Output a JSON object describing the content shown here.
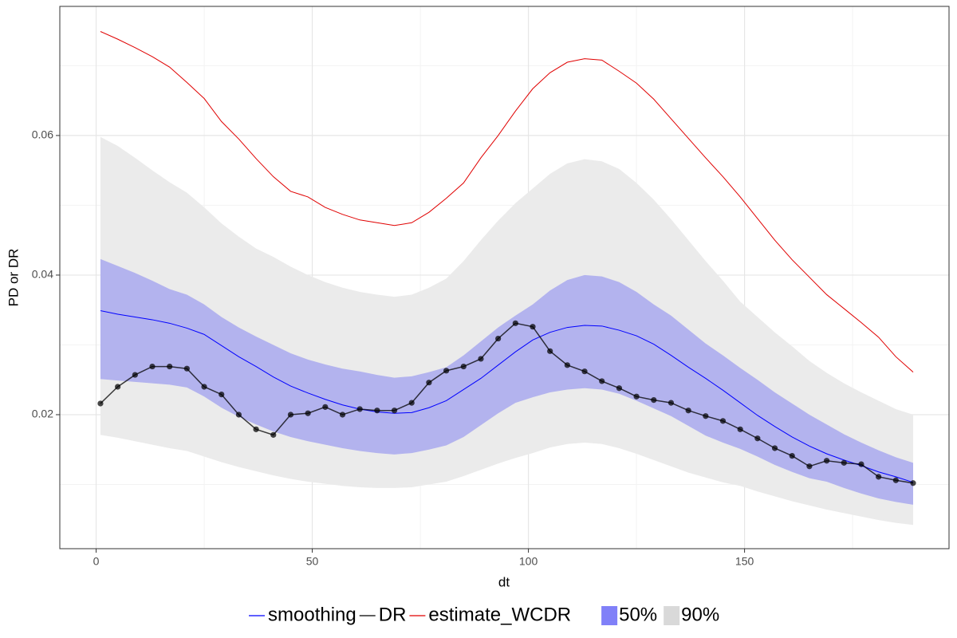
{
  "chart_data": {
    "type": "line",
    "x_label": "dt",
    "y_label": "PD or DR",
    "xlim": [
      -8.4,
      197.3
    ],
    "ylim": [
      0.0008,
      0.0785
    ],
    "xticks": [
      0,
      50,
      100,
      150
    ],
    "yticks": [
      0.02,
      0.04,
      0.06
    ],
    "x_minor_grid": [
      25,
      75,
      125,
      175
    ],
    "y_minor_grid": [
      0.01,
      0.03,
      0.05,
      0.07
    ],
    "grid": true,
    "x": [
      1,
      5,
      9,
      13,
      17,
      21,
      25,
      29,
      33,
      37,
      41,
      45,
      49,
      53,
      57,
      61,
      65,
      69,
      73,
      77,
      81,
      85,
      89,
      93,
      97,
      101,
      105,
      109,
      113,
      117,
      121,
      125,
      129,
      133,
      137,
      141,
      145,
      149,
      153,
      157,
      161,
      165,
      169,
      173,
      177,
      181,
      185,
      189
    ],
    "series": [
      {
        "name": "smoothing",
        "color": "#0000ff",
        "style": "line",
        "values": [
          0.0349,
          0.0344,
          0.034,
          0.0336,
          0.0331,
          0.0324,
          0.0315,
          0.0299,
          0.0283,
          0.0269,
          0.0254,
          0.0241,
          0.0231,
          0.0222,
          0.0214,
          0.0208,
          0.0204,
          0.0202,
          0.0203,
          0.021,
          0.022,
          0.0236,
          0.0252,
          0.0271,
          0.029,
          0.0307,
          0.0318,
          0.0325,
          0.0328,
          0.0327,
          0.0321,
          0.0313,
          0.0301,
          0.0285,
          0.0268,
          0.0252,
          0.0235,
          0.0217,
          0.0199,
          0.0183,
          0.0168,
          0.0155,
          0.0144,
          0.0135,
          0.0127,
          0.0118,
          0.0111,
          0.0103
        ]
      },
      {
        "name": "DR",
        "color": "#000000",
        "style": "points",
        "values": [
          0.0216,
          0.024,
          0.0257,
          0.0269,
          0.0269,
          0.0266,
          0.024,
          0.0229,
          0.02,
          0.0179,
          0.0171,
          0.02,
          0.0202,
          0.0211,
          0.02,
          0.0208,
          0.0206,
          0.0206,
          0.0217,
          0.0246,
          0.0263,
          0.0269,
          0.028,
          0.0309,
          0.0331,
          0.0326,
          0.0291,
          0.0271,
          0.0262,
          0.0248,
          0.0238,
          0.0226,
          0.0221,
          0.0217,
          0.0206,
          0.0198,
          0.0191,
          0.0179,
          0.0166,
          0.0152,
          0.0141,
          0.0126,
          0.0134,
          0.0131,
          0.0129,
          0.0111,
          0.0106,
          0.0102
        ]
      },
      {
        "name": "estimate_WCDR",
        "color": "#e00000",
        "style": "line",
        "values": [
          0.0749,
          0.0738,
          0.0726,
          0.0713,
          0.0698,
          0.0676,
          0.0653,
          0.062,
          0.0595,
          0.0567,
          0.0541,
          0.052,
          0.0512,
          0.0497,
          0.0487,
          0.0479,
          0.0475,
          0.0471,
          0.0475,
          0.049,
          0.051,
          0.0532,
          0.0568,
          0.06,
          0.0635,
          0.0667,
          0.069,
          0.0705,
          0.071,
          0.0708,
          0.0692,
          0.0675,
          0.0652,
          0.0624,
          0.0596,
          0.0568,
          0.0541,
          0.0512,
          0.0481,
          0.045,
          0.0422,
          0.0397,
          0.0372,
          0.0352,
          0.0332,
          0.0311,
          0.0283,
          0.0261
        ]
      }
    ],
    "bands": [
      {
        "name": "50%",
        "color": "#8080f8",
        "fill": "#b3b3ee",
        "upper": [
          0.0423,
          0.0413,
          0.0403,
          0.0392,
          0.038,
          0.0372,
          0.0358,
          0.034,
          0.0325,
          0.0312,
          0.03,
          0.0288,
          0.0279,
          0.0272,
          0.0266,
          0.0262,
          0.0257,
          0.0253,
          0.0255,
          0.0261,
          0.0268,
          0.0285,
          0.0305,
          0.0325,
          0.0342,
          0.0358,
          0.0378,
          0.0393,
          0.04,
          0.0398,
          0.039,
          0.0376,
          0.0358,
          0.0342,
          0.0322,
          0.0302,
          0.0285,
          0.0267,
          0.025,
          0.0232,
          0.0216,
          0.02,
          0.0186,
          0.0172,
          0.016,
          0.0149,
          0.0139,
          0.0131
        ],
        "lower": [
          0.0251,
          0.0249,
          0.0247,
          0.0245,
          0.0243,
          0.0239,
          0.0226,
          0.021,
          0.0197,
          0.0186,
          0.0176,
          0.0168,
          0.0162,
          0.0157,
          0.0152,
          0.0148,
          0.0145,
          0.0143,
          0.0145,
          0.015,
          0.0156,
          0.0168,
          0.0185,
          0.0202,
          0.0217,
          0.0225,
          0.0232,
          0.0236,
          0.0238,
          0.0236,
          0.023,
          0.022,
          0.0209,
          0.0198,
          0.0184,
          0.017,
          0.016,
          0.0151,
          0.014,
          0.0128,
          0.0118,
          0.0109,
          0.0104,
          0.0095,
          0.0087,
          0.008,
          0.0075,
          0.0071
        ]
      },
      {
        "name": "90%",
        "color": "#d9d9d9",
        "fill": "#ebebeb",
        "upper": [
          0.0598,
          0.0585,
          0.0568,
          0.055,
          0.0533,
          0.0518,
          0.0497,
          0.0474,
          0.0455,
          0.0438,
          0.0426,
          0.0412,
          0.04,
          0.039,
          0.0382,
          0.0376,
          0.0372,
          0.0369,
          0.0372,
          0.0382,
          0.0395,
          0.042,
          0.045,
          0.0478,
          0.0503,
          0.0524,
          0.0545,
          0.056,
          0.0566,
          0.0563,
          0.0552,
          0.0532,
          0.0508,
          0.048,
          0.045,
          0.042,
          0.0392,
          0.0362,
          0.034,
          0.0318,
          0.0298,
          0.0277,
          0.026,
          0.0245,
          0.0232,
          0.022,
          0.0208,
          0.02
        ],
        "lower": [
          0.0171,
          0.0167,
          0.0162,
          0.0157,
          0.0152,
          0.0148,
          0.014,
          0.0132,
          0.0125,
          0.0119,
          0.0113,
          0.0108,
          0.0104,
          0.0101,
          0.0098,
          0.0096,
          0.0095,
          0.0095,
          0.0096,
          0.01,
          0.0104,
          0.0112,
          0.0121,
          0.013,
          0.0138,
          0.0145,
          0.0153,
          0.0158,
          0.016,
          0.0158,
          0.0152,
          0.0144,
          0.0135,
          0.0126,
          0.0117,
          0.011,
          0.0103,
          0.0098,
          0.009,
          0.0083,
          0.0076,
          0.007,
          0.0064,
          0.0059,
          0.0054,
          0.0049,
          0.0045,
          0.0042
        ]
      }
    ]
  }
}
